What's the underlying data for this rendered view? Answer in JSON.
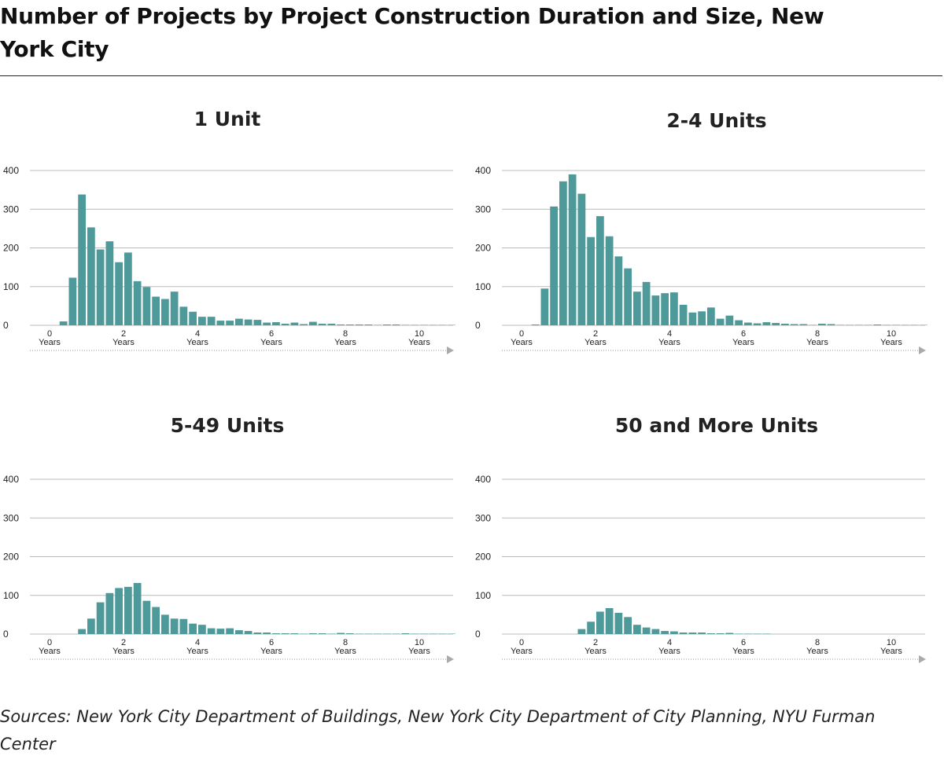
{
  "header": {
    "title": "Number of Projects by Project Construction Duration and Size, New York City"
  },
  "footer": {
    "source": "Sources: New York City Department of Buildings, New York City Department of City Planning, NYU Furman Center"
  },
  "style": {
    "bar_color": "#4e9a9a",
    "grid_color": "#bbbbbb",
    "axis_color": "#999999"
  },
  "chart_data": [
    {
      "type": "bar",
      "title": "1 Unit",
      "bin_width": 0.25,
      "x_start": 0,
      "xlim": [
        0,
        11
      ],
      "ylim": [
        0,
        400
      ],
      "yticks": [
        0,
        100,
        200,
        300,
        400
      ],
      "xticks": [
        0,
        2,
        4,
        6,
        8,
        10
      ],
      "x_unit_label": "Years",
      "grid": true,
      "values": [
        0,
        10,
        123,
        338,
        253,
        196,
        217,
        163,
        188,
        114,
        99,
        74,
        68,
        87,
        48,
        35,
        22,
        22,
        12,
        12,
        17,
        15,
        14,
        7,
        8,
        4,
        7,
        3,
        9,
        4,
        4,
        2,
        2,
        2,
        2,
        1,
        2,
        2,
        1,
        1,
        1,
        1,
        1,
        1
      ]
    },
    {
      "type": "bar",
      "title": "2-4 Units",
      "bin_width": 0.25,
      "x_start": 0,
      "xlim": [
        0,
        11
      ],
      "ylim": [
        0,
        400
      ],
      "yticks": [
        0,
        100,
        200,
        300,
        400
      ],
      "xticks": [
        0,
        2,
        4,
        6,
        8,
        10
      ],
      "x_unit_label": "Years",
      "grid": true,
      "values": [
        0,
        2,
        95,
        307,
        372,
        390,
        340,
        228,
        282,
        230,
        178,
        147,
        87,
        112,
        77,
        83,
        85,
        53,
        33,
        36,
        46,
        17,
        25,
        13,
        7,
        5,
        8,
        6,
        4,
        3,
        3,
        1,
        4,
        3,
        1,
        1,
        1,
        1,
        2,
        1,
        1,
        1,
        1,
        1
      ]
    },
    {
      "type": "bar",
      "title": "5-49 Units",
      "bin_width": 0.25,
      "x_start": 0,
      "xlim": [
        0,
        11
      ],
      "ylim": [
        0,
        400
      ],
      "yticks": [
        0,
        100,
        200,
        300,
        400
      ],
      "xticks": [
        0,
        2,
        4,
        6,
        8,
        10
      ],
      "x_unit_label": "Years",
      "grid": true,
      "values": [
        0,
        0,
        0,
        13,
        40,
        82,
        106,
        119,
        122,
        132,
        86,
        70,
        50,
        40,
        39,
        27,
        24,
        15,
        14,
        15,
        10,
        8,
        4,
        4,
        2,
        2,
        2,
        1,
        2,
        2,
        1,
        3,
        2,
        1,
        1,
        1,
        1,
        1,
        2,
        1,
        1,
        1,
        1,
        1
      ]
    },
    {
      "type": "bar",
      "title": "50 and More Units",
      "bin_width": 0.25,
      "x_start": 0,
      "xlim": [
        0,
        11
      ],
      "ylim": [
        0,
        400
      ],
      "yticks": [
        0,
        100,
        200,
        300,
        400
      ],
      "xticks": [
        0,
        2,
        4,
        6,
        8,
        10
      ],
      "x_unit_label": "Years",
      "grid": true,
      "values": [
        0,
        0,
        0,
        0,
        0,
        0,
        13,
        32,
        58,
        67,
        55,
        44,
        24,
        17,
        13,
        8,
        7,
        4,
        4,
        4,
        2,
        2,
        3,
        1,
        1,
        1,
        1,
        0,
        0,
        0,
        0,
        0,
        0,
        0,
        0,
        0,
        0,
        0,
        0,
        0,
        0,
        0,
        0,
        0
      ]
    }
  ]
}
